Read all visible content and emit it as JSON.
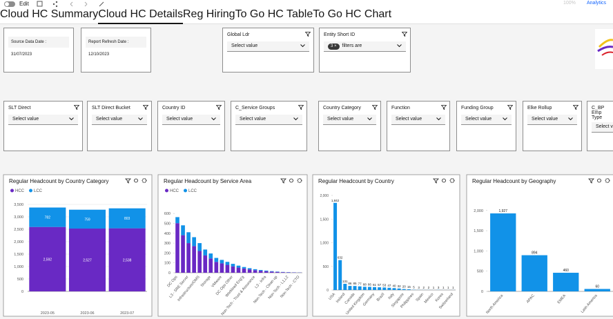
{
  "toolbar": {
    "edit": "Edit",
    "zoom": "100%",
    "app": "Analytics"
  },
  "tabs": [
    "Cloud HC Summary",
    "Cloud HC Details",
    "Reg Hiring",
    "To Go HC Table",
    "To Go HC Chart"
  ],
  "active_tab": 1,
  "date_cards": [
    {
      "label": "Source Data Date :",
      "value": "31/07/2023"
    },
    {
      "label": "Report Refresh Date :",
      "value": "12/10/2023"
    }
  ],
  "filters_top": [
    {
      "label": "Global Ldr",
      "placeholder": "Select value"
    },
    {
      "label": "Entity Short ID",
      "chip": "3",
      "placeholder": "filters are"
    }
  ],
  "filters": [
    {
      "label": "SLT Direct",
      "placeholder": "Select value"
    },
    {
      "label": "SLT Direct Bucket",
      "placeholder": "Select value"
    },
    {
      "label": "Country ID",
      "placeholder": "Select value"
    },
    {
      "label": "C_Service Groups",
      "placeholder": "Select value"
    },
    {
      "label": "Country Category",
      "placeholder": "Select value"
    },
    {
      "label": "Function",
      "placeholder": "Select value"
    },
    {
      "label": "Funding Group",
      "placeholder": "Select value"
    },
    {
      "label": "Elke Rollup",
      "placeholder": "Select value"
    },
    {
      "label": "C_BP Emp Type",
      "placeholder": "Select value"
    }
  ],
  "chart_data": [
    {
      "type": "bar",
      "stacked": true,
      "title": "Regular Headcount by Country Category",
      "legend": true,
      "categories": [
        "2023-05",
        "2023-06",
        "2023-07"
      ],
      "series": [
        {
          "name": "HCC",
          "color": "#6929c4",
          "values": [
            2592,
            2527,
            2538
          ],
          "value_labels": [
            "2,592",
            "2,527",
            "2,538"
          ]
        },
        {
          "name": "LCC",
          "color": "#1192e8",
          "values": [
            782,
            759,
            803
          ]
        }
      ],
      "ylim": [
        0,
        3500
      ],
      "yticks": [
        0,
        500,
        {
          "value": 1000,
          "label": "1,000"
        },
        {
          "value": 1500,
          "label": "1,500"
        },
        {
          "value": 2000,
          "label": "2,000"
        },
        {
          "value": 2500,
          "label": "2,500"
        },
        {
          "value": 3000,
          "label": "3,000"
        },
        {
          "value": 3500,
          "label": "3,500"
        }
      ],
      "grid": true
    },
    {
      "type": "bar",
      "stacked": true,
      "title": "Regular Headcount by Service Area",
      "legend": true,
      "categories": [
        "DC Ops",
        null,
        "L3 - SRE Server",
        null,
        "Infrastructure/OMS",
        null,
        "Storage",
        null,
        "VMware",
        null,
        "DC Ops Other",
        null,
        "Workload Eng'g",
        null,
        "Non-Tech - Trust & Assurance",
        null,
        "L3 - Infra",
        null,
        "Non-Tech - Clean up",
        null,
        "Non-Tech - L1,L2",
        null,
        "Non-Tech - CTO"
      ],
      "series": [
        {
          "name": "HCC",
          "color": "#6929c4",
          "values": [
            502,
            380,
            300,
            270,
            220,
            175,
            145,
            110,
            95,
            80,
            65,
            52,
            43,
            34,
            26,
            20,
            16,
            12,
            9,
            6,
            4,
            3,
            2
          ]
        },
        {
          "name": "LCC",
          "color": "#1192e8",
          "values": [
            61,
            100,
            110,
            90,
            80,
            60,
            50,
            40,
            35,
            30,
            25,
            20,
            15,
            12,
            10,
            8,
            6,
            4,
            3,
            2,
            2,
            1,
            1
          ]
        }
      ],
      "ylim": [
        0,
        650
      ],
      "yticks": [
        0,
        100,
        200,
        300,
        400,
        500,
        600
      ],
      "grid": false
    },
    {
      "type": "bar",
      "title": "Regular Headcount by Country",
      "color": "#1192e8",
      "categories": [
        "USA",
        null,
        "Ireland",
        null,
        "Canada",
        null,
        "United Kingdom",
        null,
        "Germany",
        null,
        "Brazil",
        null,
        "Italy",
        null,
        "Singapore",
        null,
        "Philippines",
        null,
        "Spain",
        null,
        "Mexico",
        null,
        "Korea",
        null,
        "Switzerland"
      ],
      "values": [
        1842,
        632,
        131,
        86,
        85,
        77,
        68,
        66,
        61,
        57,
        53,
        47,
        40,
        32,
        20,
        15,
        5,
        3,
        2,
        2,
        1,
        3,
        1,
        1,
        1
      ],
      "value_labels": [
        "1,842",
        "632",
        "131",
        "86",
        "85",
        "77",
        "68",
        "66",
        "61",
        "57",
        "53",
        "47",
        "40",
        "32",
        "20",
        "15",
        "5",
        "3",
        "2",
        "2",
        "1",
        "3",
        "1",
        "1",
        "1"
      ],
      "ylim": [
        0,
        2000
      ],
      "yticks": [
        0,
        500,
        {
          "value": 1000,
          "label": "1,000"
        },
        {
          "value": 1500,
          "label": "1,500"
        },
        {
          "value": 2000,
          "label": "2,000"
        }
      ],
      "grid": false
    },
    {
      "type": "bar",
      "title": "Regular Headcount by Geography",
      "color": "#1192e8",
      "categories": [
        "North America",
        "APAC",
        "EMEA",
        "Latin America"
      ],
      "values": [
        1927,
        894,
        460,
        60
      ],
      "value_labels": [
        "1,927",
        "894",
        "460",
        "60"
      ],
      "ylim": [
        0,
        2150
      ],
      "yticks": [
        0,
        500,
        {
          "value": 1000,
          "label": "1,000"
        },
        {
          "value": 1500,
          "label": "1,500"
        },
        {
          "value": 2000,
          "label": "2,000"
        }
      ],
      "grid": false
    }
  ]
}
